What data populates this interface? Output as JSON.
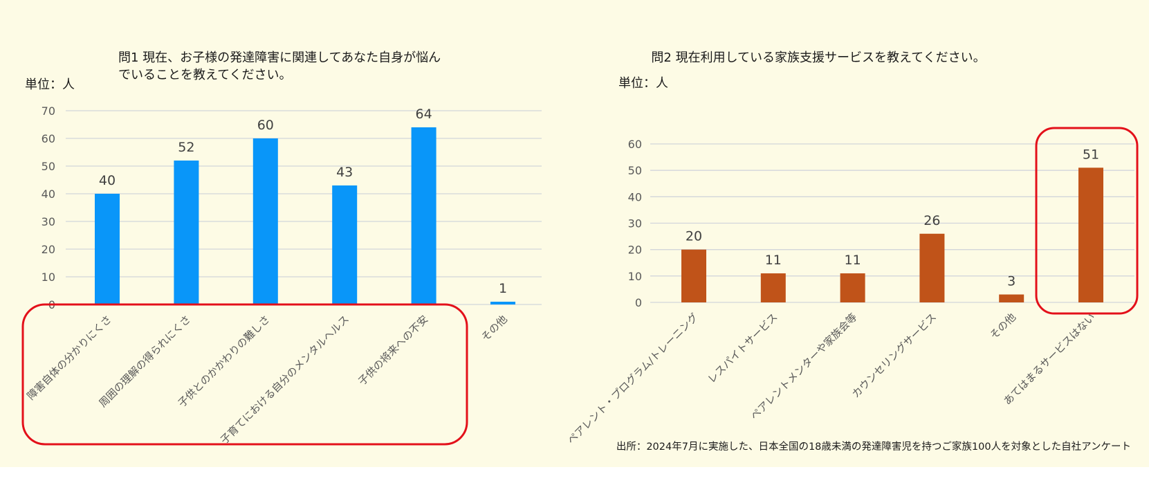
{
  "colors": {
    "background": "#fdfbe5",
    "bar_left": "#0996f9",
    "bar_right": "#c05319",
    "highlight": "#e3101a",
    "grid": "#d2d6da",
    "axis_text": "#595959",
    "title_text": "#1a1a1a"
  },
  "source_note": "出所：2024年7月に実施した、日本全国の18歳未満の発達障害児を持つご家族100人を対象とした自社アンケート",
  "chart_data": [
    {
      "type": "bar",
      "title_lines": [
        "問1  現在、お子様の発達障害に関連してあなた自身が悩ん",
        "でいることを教えてください。"
      ],
      "unit_label": "単位：人",
      "categories": [
        "障害自体の分かりにくさ",
        "周囲の理解の得られにくさ",
        "子供とのかかわりの難しさ",
        "子育てにおける自分のメンタルヘルス",
        "子供の将来への不安",
        "その他"
      ],
      "values": [
        40,
        52,
        60,
        43,
        64,
        1
      ],
      "ylim": [
        0,
        70
      ],
      "yticks": [
        0,
        10,
        20,
        30,
        40,
        50,
        60,
        70
      ],
      "grid": true,
      "highlight": "categories 1-5"
    },
    {
      "type": "bar",
      "title_lines": [
        "問2  現在利用している家族支援サービスを教えてください。"
      ],
      "unit_label": "単位：人",
      "categories": [
        "ペアレント・プログラム/トレーニング",
        "レスパイトサービス",
        "ペアレントメンターや家族会等",
        "カウンセリングサービス",
        "その他",
        "あてはまるサービスはない"
      ],
      "values": [
        20,
        11,
        11,
        26,
        3,
        51
      ],
      "ylim": [
        0,
        60
      ],
      "yticks": [
        0,
        10,
        20,
        30,
        40,
        50,
        60
      ],
      "grid": true,
      "highlight": "category 6"
    }
  ]
}
